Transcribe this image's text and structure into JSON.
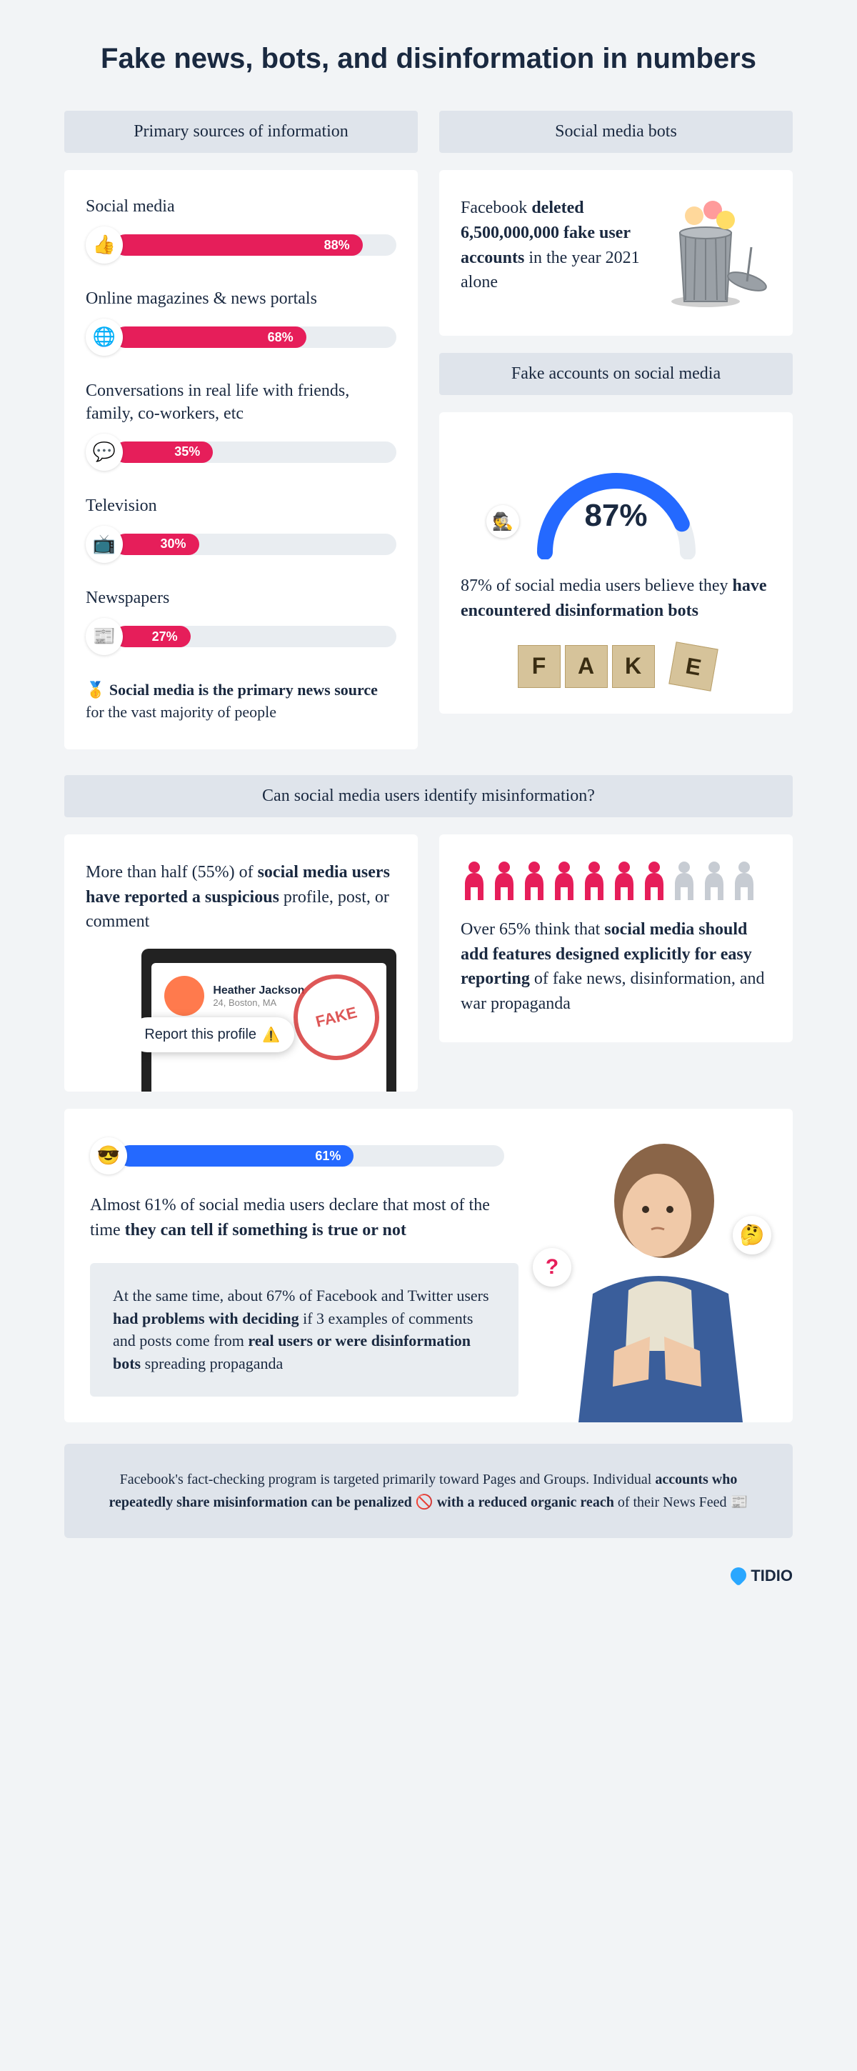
{
  "title": "Fake news, bots, and disinformation in numbers",
  "colors": {
    "bg": "#f2f4f6",
    "card": "#ffffff",
    "header": "#dfe4eb",
    "pink": "#e61e5a",
    "blue": "#2469ff",
    "track": "#e9edf1",
    "faded": "#c7ccd3",
    "text": "#1a2940"
  },
  "sources": {
    "header": "Primary sources of information",
    "items": [
      {
        "label": "Social media",
        "icon": "👍",
        "pct": 88,
        "color": "#e61e5a"
      },
      {
        "label": "Online magazines & news portals",
        "icon": "🌐",
        "pct": 68,
        "color": "#e61e5a"
      },
      {
        "label": "Conversations in real life with friends, family, co-workers, etc",
        "icon": "💬",
        "pct": 35,
        "color": "#e61e5a"
      },
      {
        "label": "Television",
        "icon": "📺",
        "pct": 30,
        "color": "#e61e5a"
      },
      {
        "label": "Newspapers",
        "icon": "📰",
        "pct": 27,
        "color": "#e61e5a"
      }
    ],
    "footnote_icon": "🥇",
    "footnote_html": "<b>Social media is the primary news source</b> for the vast majority of people"
  },
  "bots": {
    "header": "Social media bots",
    "text_html": "Facebook <b>deleted 6,500,000,000 fake user accounts</b> in the year 2021 alone"
  },
  "fake_accounts": {
    "header": "Fake accounts on social media",
    "gauge_pct": 87,
    "gauge_label": "87%",
    "gauge_icon": "🕵️",
    "gauge_colors": {
      "fill": "#2469ff",
      "track": "#e9edf1"
    },
    "text_html": "87% of social media users believe they <b>have encountered disinformation bots</b>"
  },
  "identify": {
    "header": "Can social media users identify misinformation?",
    "left_html": "More than half (55%) of <b>social media users have reported a suspicious</b> profile, post, or comment",
    "report_name": "Heather Jackson",
    "report_sub": "24, Boston, MA",
    "report_btn": "Report this profile",
    "right_people": {
      "total": 10,
      "filled": 7,
      "fill_color": "#e61e5a",
      "empty_color": "#c7ccd3"
    },
    "right_html": "Over 65% think that <b>social media should add features designed explicitly for easy reporting</b> of fake news, disinformation, and war propaganda"
  },
  "confidence": {
    "icon": "😎",
    "pct": 61,
    "color": "#2469ff",
    "text_html": "Almost 61% of social media users declare that most of the time <b>they can tell if something is true or not</b>",
    "inset_html": "At the same time, about 67% of Facebook and Twitter users <b>had problems with deciding</b> if 3 examples of comments and posts come from <b>real users or were disinformation bots</b> spreading propaganda",
    "bubble_think": "🤔",
    "bubble_q": "?"
  },
  "footer_html": "Facebook's fact-checking program is targeted primarily toward Pages and Groups. Individual <b>accounts who repeatedly share misinformation can be penalized</b> 🚫 <b>with a reduced organic reach</b> of their News Feed 📰",
  "logo": "TIDIO"
}
